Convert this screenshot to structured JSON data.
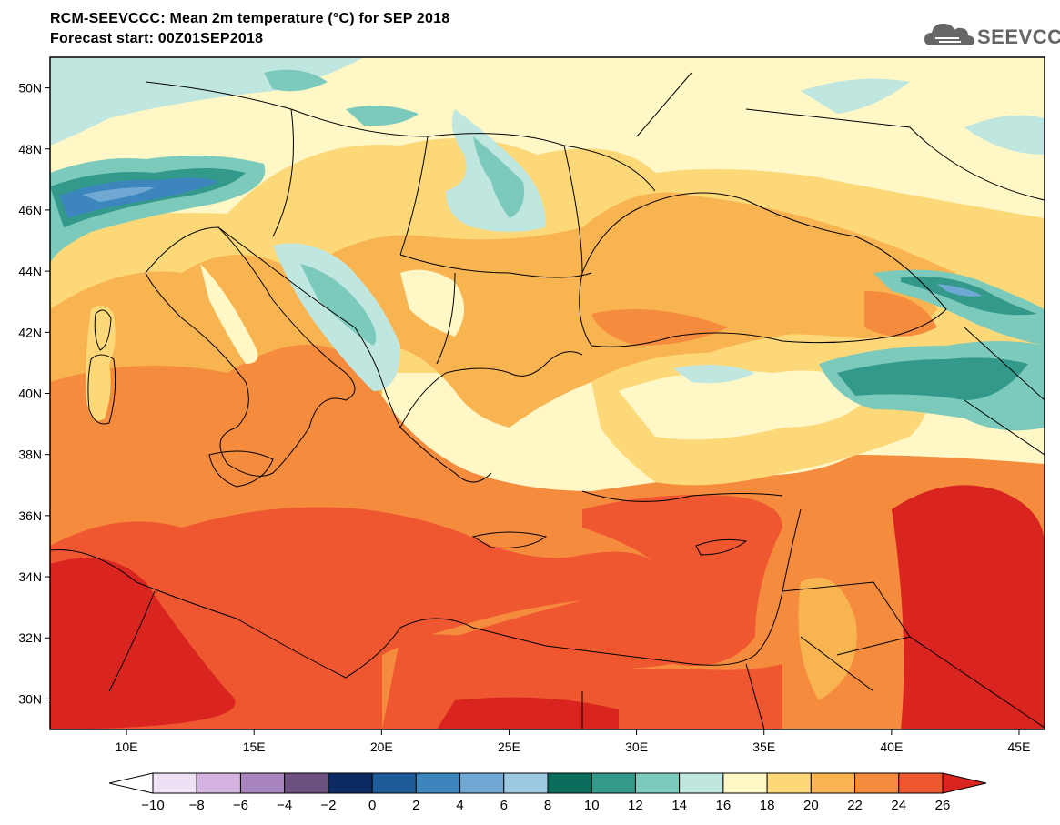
{
  "header": {
    "title_line1": "RCM-SEEVCCC: Mean 2m temperature (°C) for SEP 2018",
    "title_line2": "Forecast start: 00Z01SEP2018",
    "logo_text": "SEEVCCC"
  },
  "map": {
    "lat_range": [
      29,
      51
    ],
    "lon_range": [
      7,
      46
    ],
    "lat_ticks": [
      "30N",
      "32N",
      "34N",
      "36N",
      "38N",
      "40N",
      "42N",
      "44N",
      "46N",
      "48N",
      "50N"
    ],
    "lon_ticks": [
      "10E",
      "15E",
      "20E",
      "25E",
      "30E",
      "35E",
      "40E",
      "45E"
    ],
    "variable": "Mean 2m temperature",
    "units": "°C"
  },
  "colorbar": {
    "labels": [
      "-10",
      "-8",
      "-6",
      "-4",
      "-2",
      "0",
      "2",
      "4",
      "6",
      "8",
      "10",
      "12",
      "14",
      "16",
      "18",
      "20",
      "22",
      "24",
      "26"
    ],
    "colors": [
      "#ffffff",
      "#efe1f5",
      "#d5b3e0",
      "#a784be",
      "#6c5080",
      "#0b2a64",
      "#1b5c99",
      "#3c86bd",
      "#6fa9d3",
      "#9dc8e2",
      "#0b6e5c",
      "#33998a",
      "#7ccabc",
      "#c0e6e0",
      "#fff7c6",
      "#fdd878",
      "#f9b452",
      "#f58b3d",
      "#ef5730",
      "#d9241f"
    ]
  }
}
